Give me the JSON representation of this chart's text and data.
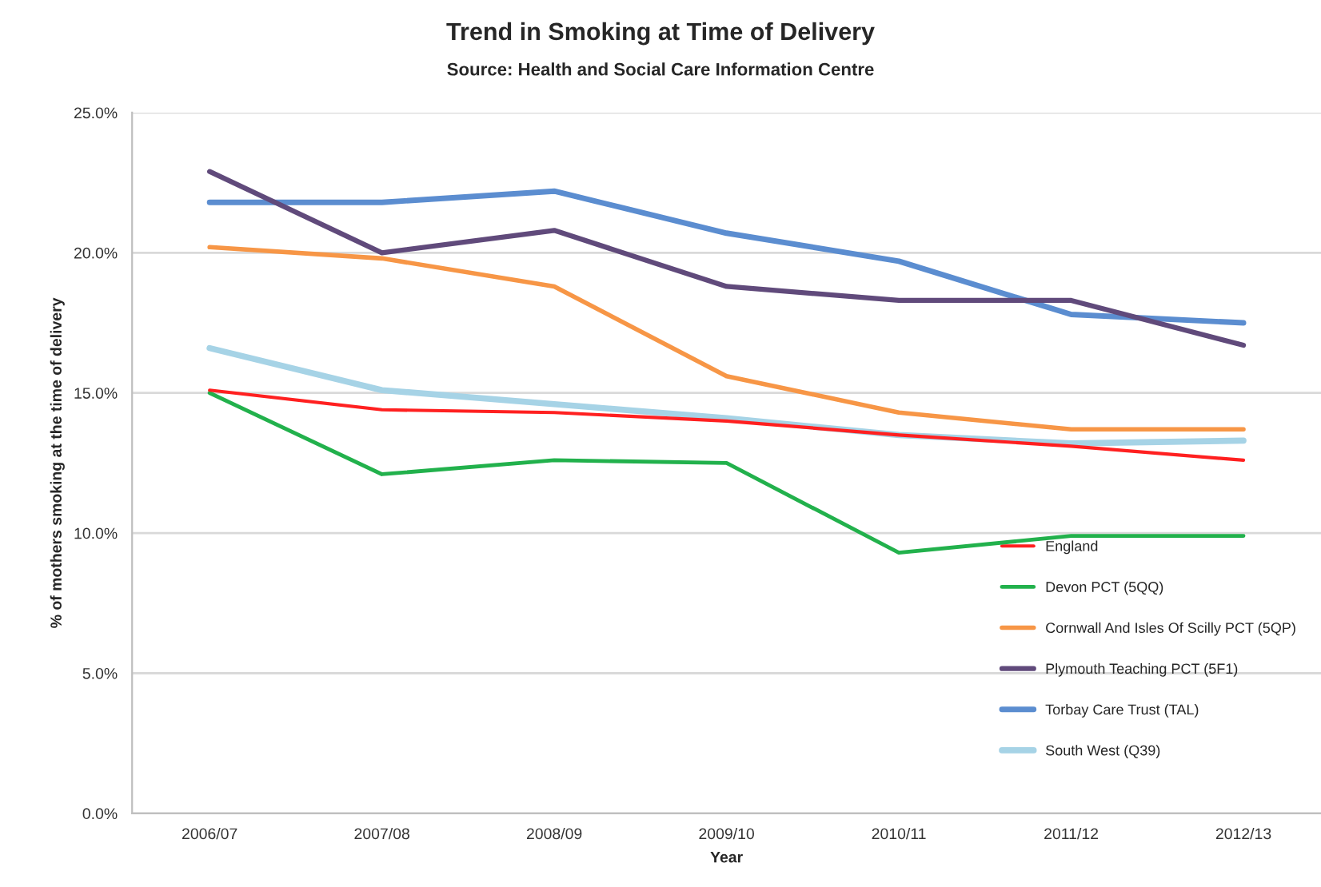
{
  "chart_data": {
    "type": "line",
    "title": "Trend in Smoking at Time of Delivery",
    "subtitle": "Source: Health and Social Care Information Centre",
    "xlabel": "Year",
    "ylabel": "% of mothers smoking at the time of delivery",
    "categories": [
      "2006/07",
      "2007/08",
      "2008/09",
      "2009/10",
      "2010/11",
      "2011/12",
      "2012/13"
    ],
    "series": [
      {
        "name": "England",
        "color": "#ff2020",
        "values": [
          15.1,
          14.4,
          14.3,
          14.0,
          13.5,
          13.1,
          12.6
        ]
      },
      {
        "name": "Devon PCT (5QQ)",
        "color": "#22b14c",
        "values": [
          15.0,
          12.1,
          12.6,
          12.5,
          9.3,
          9.9,
          9.9
        ]
      },
      {
        "name": "Cornwall And Isles Of Scilly PCT (5QP)",
        "color": "#f79646",
        "values": [
          20.2,
          19.8,
          18.8,
          15.6,
          14.3,
          13.7,
          13.7
        ]
      },
      {
        "name": "Plymouth Teaching PCT (5F1)",
        "color": "#604a7b",
        "values": [
          22.9,
          20.0,
          20.8,
          18.8,
          18.3,
          18.3,
          16.7
        ]
      },
      {
        "name": "Torbay Care Trust (TAL)",
        "color": "#5b8dd0",
        "values": [
          21.8,
          21.8,
          22.2,
          20.7,
          19.7,
          17.8,
          17.5
        ]
      },
      {
        "name": "South West (Q39)",
        "color": "#a6d3e6",
        "values": [
          16.6,
          15.1,
          14.6,
          14.1,
          13.5,
          13.2,
          13.3
        ]
      }
    ],
    "ylim": [
      0,
      25
    ],
    "yticks": [
      {
        "value": 0,
        "label": "0.0%"
      },
      {
        "value": 5,
        "label": "5.0%"
      },
      {
        "value": 10,
        "label": "10.0%"
      },
      {
        "value": 15,
        "label": "15.0%"
      },
      {
        "value": 20,
        "label": "20.0%"
      },
      {
        "value": 25,
        "label": "25.0%"
      }
    ],
    "grid": "y",
    "legend": "bottom right",
    "marker": "none",
    "line_style": "solid"
  }
}
